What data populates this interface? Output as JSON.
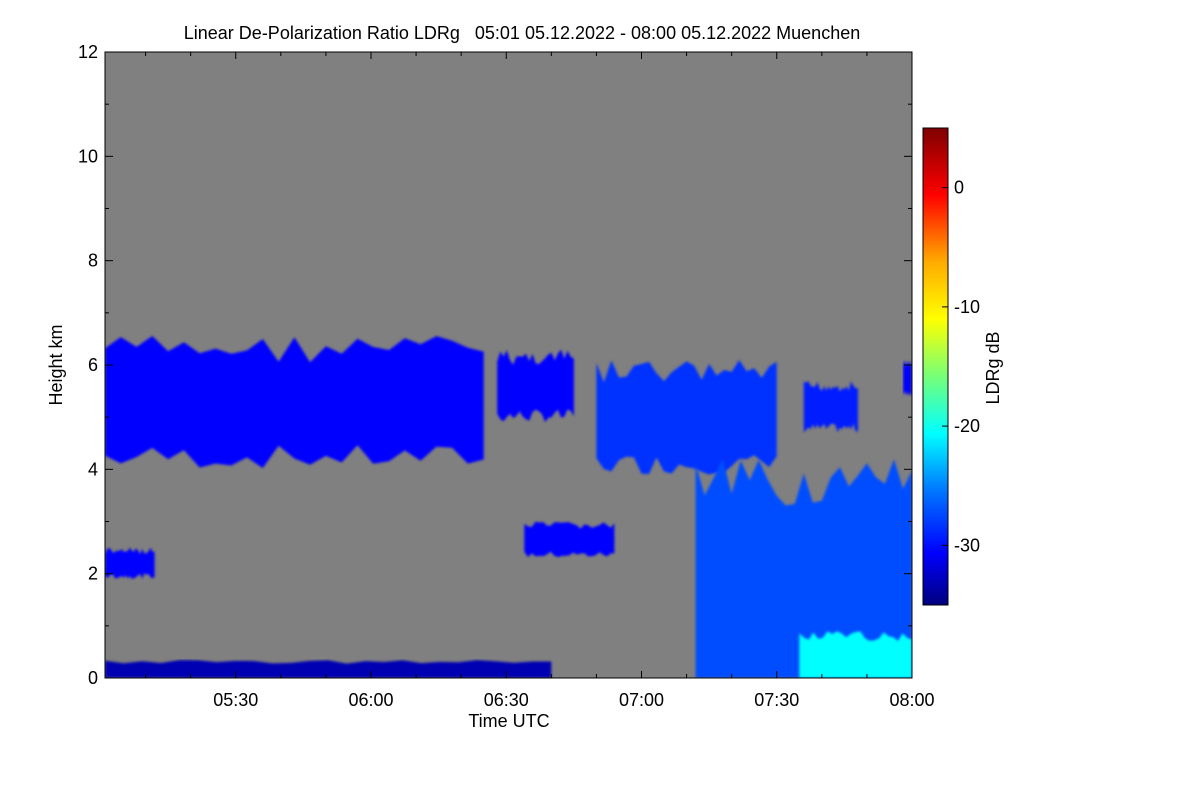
{
  "chart_data": {
    "type": "heatmap",
    "title": "Linear De-Polarization Ratio LDRg   05:01 05.12.2022 - 08:00 05.12.2022 Muenchen",
    "xlabel": "Time UTC",
    "ylabel": "Height km",
    "x_ticks": [
      "05:30",
      "06:00",
      "06:30",
      "07:00",
      "07:30",
      "08:00"
    ],
    "x_tick_minutes": [
      30,
      60,
      90,
      120,
      150,
      180
    ],
    "xlim_minutes": [
      1,
      180
    ],
    "y_ticks": [
      "0",
      "2",
      "4",
      "6",
      "8",
      "10",
      "12"
    ],
    "ylim": [
      0,
      12
    ],
    "colorbar": {
      "label": "LDRg dB",
      "ticks": [
        "0",
        "-10",
        "-20",
        "-30"
      ],
      "tick_values": [
        0,
        -10,
        -20,
        -30
      ],
      "range": [
        -35,
        5
      ]
    },
    "background_color": "#808080",
    "features": [
      {
        "name": "mid-level cloud",
        "x_min": [
          1,
          85
        ],
        "height_km": [
          4.0,
          6.6
        ],
        "ldr_db": -30
      },
      {
        "name": "mid-level cloud",
        "x_min": [
          88,
          105
        ],
        "height_km": [
          4.9,
          6.3
        ],
        "ldr_db": -30
      },
      {
        "name": "mid-level cloud",
        "x_min": [
          110,
          150
        ],
        "height_km": [
          3.9,
          6.1
        ],
        "ldr_db": -28
      },
      {
        "name": "mid-level cloud",
        "x_min": [
          156,
          168
        ],
        "height_km": [
          4.7,
          5.7
        ],
        "ldr_db": -29
      },
      {
        "name": "mid-level cloud",
        "x_min": [
          178,
          180
        ],
        "height_km": [
          5.4,
          6.1
        ],
        "ldr_db": -30
      },
      {
        "name": "near-surface layer",
        "x_min": [
          1,
          100
        ],
        "height_km": [
          0.0,
          0.35
        ],
        "ldr_db": -33
      },
      {
        "name": "low cloud",
        "x_min": [
          1,
          12
        ],
        "height_km": [
          1.9,
          2.5
        ],
        "ldr_db": -30
      },
      {
        "name": "low cloud",
        "x_min": [
          94,
          114
        ],
        "height_km": [
          2.3,
          3.0
        ],
        "ldr_db": -30
      },
      {
        "name": "boundary layer",
        "x_min": [
          132,
          180
        ],
        "height_km": [
          0.0,
          4.2
        ],
        "ldr_db": -27
      },
      {
        "name": "high-LDR layer",
        "x_min": [
          155,
          180
        ],
        "height_km": [
          0.0,
          0.9
        ],
        "ldr_db": -20
      }
    ]
  }
}
